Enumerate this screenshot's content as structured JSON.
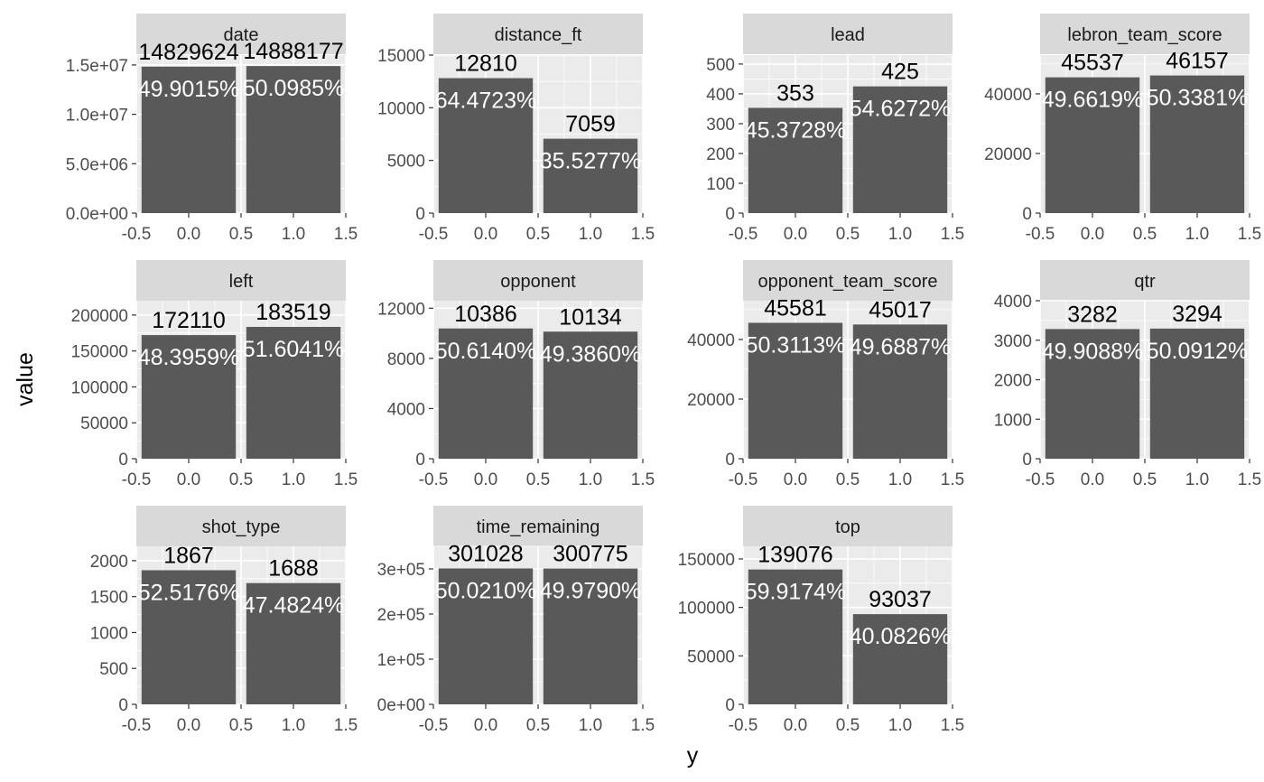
{
  "chart_data": {
    "type": "bar",
    "xlabel": "y",
    "ylabel": "value",
    "x_tick_labels": [
      "-0.5",
      "0.0",
      "0.5",
      "1.0",
      "1.5"
    ],
    "xlim": [
      -0.5,
      1.5
    ],
    "categories": [
      0,
      1
    ],
    "grid": true,
    "colors": {
      "bar": "#595959",
      "panel": "#ebebeb",
      "strip": "#d9d9d9",
      "grid": "#ffffff"
    },
    "panels": [
      {
        "name": "date",
        "values": [
          14829624,
          14888177
        ],
        "labels": [
          "14829624",
          "14888177"
        ],
        "pct_labels": [
          "49.9015%",
          "50.0985%"
        ],
        "y_ticks": [
          0,
          5000000,
          10000000,
          15000000
        ],
        "y_tick_labels": [
          "0.0e+00",
          "5.0e+06",
          "1.0e+07",
          "1.5e+07"
        ],
        "ylim": [
          0,
          16000000
        ]
      },
      {
        "name": "distance_ft",
        "values": [
          12810,
          7059
        ],
        "labels": [
          "12810",
          "7059"
        ],
        "pct_labels": [
          "64.4723%",
          "35.5277%"
        ],
        "y_ticks": [
          0,
          5000,
          10000,
          15000
        ],
        "y_tick_labels": [
          "0",
          "5000",
          "10000",
          "15000"
        ],
        "ylim": [
          0,
          15000
        ]
      },
      {
        "name": "lead",
        "values": [
          353,
          425
        ],
        "labels": [
          "353",
          "425"
        ],
        "pct_labels": [
          "45.3728%",
          "54.6272%"
        ],
        "y_ticks": [
          0,
          100,
          200,
          300,
          400,
          500
        ],
        "y_tick_labels": [
          "0",
          "100",
          "200",
          "300",
          "400",
          "500"
        ],
        "ylim": [
          0,
          530
        ]
      },
      {
        "name": "lebron_team_score",
        "values": [
          45537,
          46157
        ],
        "labels": [
          "45537",
          "46157"
        ],
        "pct_labels": [
          "49.6619%",
          "50.3381%"
        ],
        "y_ticks": [
          0,
          20000,
          40000
        ],
        "y_tick_labels": [
          "0",
          "20000",
          "40000"
        ],
        "ylim": [
          0,
          53000
        ]
      },
      {
        "name": "left",
        "values": [
          172110,
          183519
        ],
        "labels": [
          "172110",
          "183519"
        ],
        "pct_labels": [
          "48.3959%",
          "51.6041%"
        ],
        "y_ticks": [
          0,
          50000,
          100000,
          150000,
          200000
        ],
        "y_tick_labels": [
          "0",
          "50000",
          "100000",
          "150000",
          "200000"
        ],
        "ylim": [
          0,
          220000
        ]
      },
      {
        "name": "opponent",
        "values": [
          10386,
          10134
        ],
        "labels": [
          "10386",
          "10134"
        ],
        "pct_labels": [
          "50.6140%",
          "49.3860%"
        ],
        "y_ticks": [
          0,
          4000,
          8000,
          12000
        ],
        "y_tick_labels": [
          "0",
          "4000",
          "8000",
          "12000"
        ],
        "ylim": [
          0,
          12600
        ]
      },
      {
        "name": "opponent_team_score",
        "values": [
          45581,
          45017
        ],
        "labels": [
          "45581",
          "45017"
        ],
        "pct_labels": [
          "50.3113%",
          "49.6887%"
        ],
        "y_ticks": [
          0,
          20000,
          40000
        ],
        "y_tick_labels": [
          "0",
          "20000",
          "40000"
        ],
        "ylim": [
          0,
          53000
        ]
      },
      {
        "name": "qtr",
        "values": [
          3282,
          3294
        ],
        "labels": [
          "3282",
          "3294"
        ],
        "pct_labels": [
          "49.9088%",
          "50.0912%"
        ],
        "y_ticks": [
          0,
          1000,
          2000,
          3000,
          4000
        ],
        "y_tick_labels": [
          "0",
          "1000",
          "2000",
          "3000",
          "4000"
        ],
        "ylim": [
          0,
          4000
        ]
      },
      {
        "name": "shot_type",
        "values": [
          1867,
          1688
        ],
        "labels": [
          "1867",
          "1688"
        ],
        "pct_labels": [
          "52.5176%",
          "47.4824%"
        ],
        "y_ticks": [
          0,
          500,
          1000,
          1500,
          2000
        ],
        "y_tick_labels": [
          "0",
          "500",
          "1000",
          "1500",
          "2000"
        ],
        "ylim": [
          0,
          2200
        ]
      },
      {
        "name": "time_remaining",
        "values": [
          301028,
          300775
        ],
        "labels": [
          "301028",
          "300775"
        ],
        "pct_labels": [
          "50.0210%",
          "49.9790%"
        ],
        "y_ticks": [
          0,
          100000,
          200000,
          300000
        ],
        "y_tick_labels": [
          "0e+00",
          "1e+05",
          "2e+05",
          "3e+05"
        ],
        "ylim": [
          0,
          350000
        ]
      },
      {
        "name": "top",
        "values": [
          139076,
          93037
        ],
        "labels": [
          "139076",
          "93037"
        ],
        "pct_labels": [
          "59.9174%",
          "40.0826%"
        ],
        "y_ticks": [
          0,
          50000,
          100000,
          150000
        ],
        "y_tick_labels": [
          "0",
          "50000",
          "100000",
          "150000"
        ],
        "ylim": [
          0,
          163000
        ]
      }
    ]
  }
}
